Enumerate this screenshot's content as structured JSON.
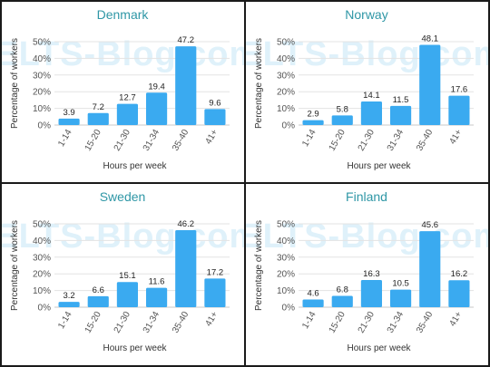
{
  "watermark": "IELTS-Blog.com",
  "chart_data": [
    {
      "type": "bar",
      "title": "Denmark",
      "categories": [
        "1-14",
        "15-20",
        "21-30",
        "31-34",
        "35-40",
        "41+"
      ],
      "values": [
        3.9,
        7.2,
        12.7,
        19.4,
        47.2,
        9.6
      ],
      "xlabel": "Hours per week",
      "ylabel": "Percentage of workers",
      "yticks": [
        "0%",
        "10%",
        "20%",
        "30%",
        "40%",
        "50%"
      ],
      "ylim": [
        0,
        50
      ],
      "color": "#3aaaf0",
      "grid": true
    },
    {
      "type": "bar",
      "title": "Norway",
      "categories": [
        "1-14",
        "15-20",
        "21-30",
        "31-34",
        "35-40",
        "41+"
      ],
      "values": [
        2.9,
        5.8,
        14.1,
        11.5,
        48.1,
        17.6
      ],
      "xlabel": "Hours per week",
      "ylabel": "Percentage of workers",
      "yticks": [
        "0%",
        "10%",
        "20%",
        "30%",
        "40%",
        "50%"
      ],
      "ylim": [
        0,
        50
      ],
      "color": "#3aaaf0",
      "grid": true
    },
    {
      "type": "bar",
      "title": "Sweden",
      "categories": [
        "1-14",
        "15-20",
        "21-30",
        "31-34",
        "35-40",
        "41+"
      ],
      "values": [
        3.2,
        6.6,
        15.1,
        11.6,
        46.2,
        17.2
      ],
      "xlabel": "Hours per week",
      "ylabel": "Percentage of workers",
      "yticks": [
        "0%",
        "10%",
        "20%",
        "30%",
        "40%",
        "50%"
      ],
      "ylim": [
        0,
        50
      ],
      "color": "#3aaaf0",
      "grid": true
    },
    {
      "type": "bar",
      "title": "Finland",
      "categories": [
        "1-14",
        "15-20",
        "21-30",
        "31-34",
        "35-40",
        "41+"
      ],
      "values": [
        4.6,
        6.8,
        16.3,
        10.5,
        45.6,
        16.2
      ],
      "xlabel": "Hours per week",
      "ylabel": "Percentage of workers",
      "yticks": [
        "0%",
        "10%",
        "20%",
        "30%",
        "40%",
        "50%"
      ],
      "ylim": [
        0,
        50
      ],
      "color": "#3aaaf0",
      "grid": true
    }
  ]
}
